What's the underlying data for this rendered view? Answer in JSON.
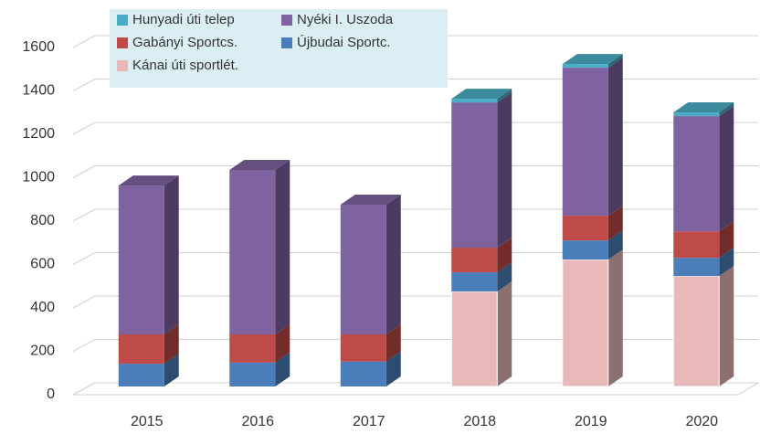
{
  "chart_data": {
    "type": "bar3d_stacked",
    "categories": [
      "2015",
      "2016",
      "2017",
      "2018",
      "2019",
      "2020"
    ],
    "series": [
      {
        "name": "Hunyadi úti telep",
        "color": "#4bacc6",
        "values": [
          null,
          null,
          null,
          17,
          17,
          17
        ]
      },
      {
        "name": "Nyéki I. Uszoda",
        "color": "#7e63a0",
        "values": [
          686,
          758,
          598,
          669,
          682,
          531
        ]
      },
      {
        "name": "Gabányi Sportcs.",
        "color": "#be4b48",
        "values": [
          135,
          130,
          125,
          114,
          114,
          122
        ]
      },
      {
        "name": "Újbudai Sportc.",
        "color": "#4a7ebb",
        "values": [
          105,
          110,
          115,
          88,
          88,
          84
        ]
      },
      {
        "name": "Kánai úti sportlét.",
        "color": "#e9b9b9",
        "values": [
          null,
          null,
          null,
          438,
          585,
          509
        ]
      }
    ],
    "ylim": [
      0,
      1600
    ],
    "yticks": [
      0,
      200,
      400,
      600,
      800,
      1000,
      1200,
      1400,
      1600
    ],
    "grid": true,
    "legend": "top-left"
  }
}
